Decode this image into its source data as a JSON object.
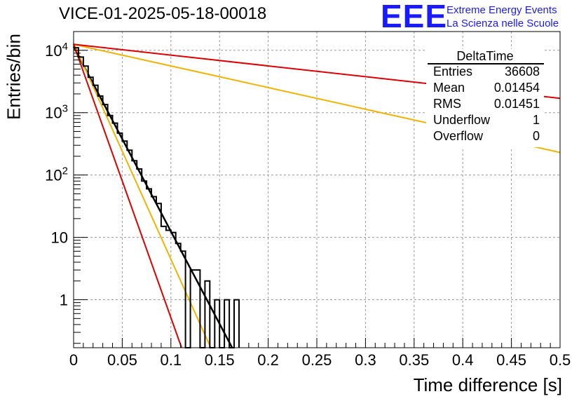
{
  "title": "VICE-01-2025-05-18-00018",
  "logo": {
    "mark": "EEE",
    "line1": "Extreme Energy Events",
    "line2": "La Scienza nelle Scuole"
  },
  "stats": {
    "name": "DeltaTime",
    "rows": [
      {
        "label": "Entries",
        "value": "36608"
      },
      {
        "label": "Mean",
        "value": "0.01454"
      },
      {
        "label": "RMS",
        "value": "0.01451"
      },
      {
        "label": "Underflow",
        "value": "1"
      },
      {
        "label": "Overflow",
        "value": "0"
      }
    ]
  },
  "chart_data": {
    "type": "histogram",
    "xlabel": "Time difference [s]",
    "ylabel": "Entries/bin",
    "xlim": [
      0,
      0.5
    ],
    "ylim": [
      0.17,
      20000
    ],
    "y_scale": "log",
    "grid": true,
    "x_ticks": [
      "0",
      "0.05",
      "0.1",
      "0.15",
      "0.2",
      "0.25",
      "0.3",
      "0.35",
      "0.4",
      "0.45",
      "0.5"
    ],
    "y_ticks": [
      {
        "value": 10000,
        "base": "10",
        "exp": "4"
      },
      {
        "value": 1000,
        "base": "10",
        "exp": "3"
      },
      {
        "value": 100,
        "base": "10",
        "exp": "2"
      },
      {
        "value": 10,
        "label": "10"
      },
      {
        "value": 1,
        "label": "1"
      }
    ],
    "bin_width": 0.005,
    "histogram_color": "#000000",
    "histogram": [
      {
        "x": 0.0,
        "y": 11000
      },
      {
        "x": 0.005,
        "y": 7800
      },
      {
        "x": 0.01,
        "y": 5600
      },
      {
        "x": 0.015,
        "y": 3700
      },
      {
        "x": 0.02,
        "y": 2750
      },
      {
        "x": 0.025,
        "y": 1850
      },
      {
        "x": 0.03,
        "y": 1350
      },
      {
        "x": 0.035,
        "y": 900
      },
      {
        "x": 0.04,
        "y": 680
      },
      {
        "x": 0.045,
        "y": 470
      },
      {
        "x": 0.05,
        "y": 350
      },
      {
        "x": 0.055,
        "y": 250
      },
      {
        "x": 0.06,
        "y": 170
      },
      {
        "x": 0.065,
        "y": 125
      },
      {
        "x": 0.07,
        "y": 80
      },
      {
        "x": 0.075,
        "y": 60
      },
      {
        "x": 0.08,
        "y": 45
      },
      {
        "x": 0.085,
        "y": 35
      },
      {
        "x": 0.09,
        "y": 15
      },
      {
        "x": 0.095,
        "y": 13
      },
      {
        "x": 0.1,
        "y": 12
      },
      {
        "x": 0.105,
        "y": 8
      },
      {
        "x": 0.11,
        "y": 6
      },
      {
        "x": 0.115,
        "y": 0
      },
      {
        "x": 0.12,
        "y": 3
      },
      {
        "x": 0.125,
        "y": 3
      },
      {
        "x": 0.13,
        "y": 0
      },
      {
        "x": 0.135,
        "y": 2
      },
      {
        "x": 0.14,
        "y": 0
      },
      {
        "x": 0.145,
        "y": 1
      },
      {
        "x": 0.15,
        "y": 0
      },
      {
        "x": 0.155,
        "y": 1
      },
      {
        "x": 0.16,
        "y": 0
      },
      {
        "x": 0.165,
        "y": 1
      }
    ],
    "fits": [
      {
        "color": "#000000",
        "width": 2.5,
        "points": [
          [
            0,
            11500
          ],
          [
            0.163,
            0.17
          ]
        ]
      },
      {
        "color": "#f0b400",
        "width": 2,
        "points": [
          [
            0,
            13000
          ],
          [
            0.141,
            0.17
          ]
        ]
      },
      {
        "color": "#f0b400",
        "width": 2,
        "points": [
          [
            0,
            12500
          ],
          [
            0.5,
            230
          ]
        ]
      },
      {
        "color": "#dd0000",
        "width": 2,
        "points": [
          [
            0,
            12500
          ],
          [
            0.111,
            0.17
          ]
        ]
      },
      {
        "color": "#dd0000",
        "width": 2,
        "points": [
          [
            0,
            12500
          ],
          [
            0.5,
            1700
          ]
        ]
      }
    ]
  }
}
